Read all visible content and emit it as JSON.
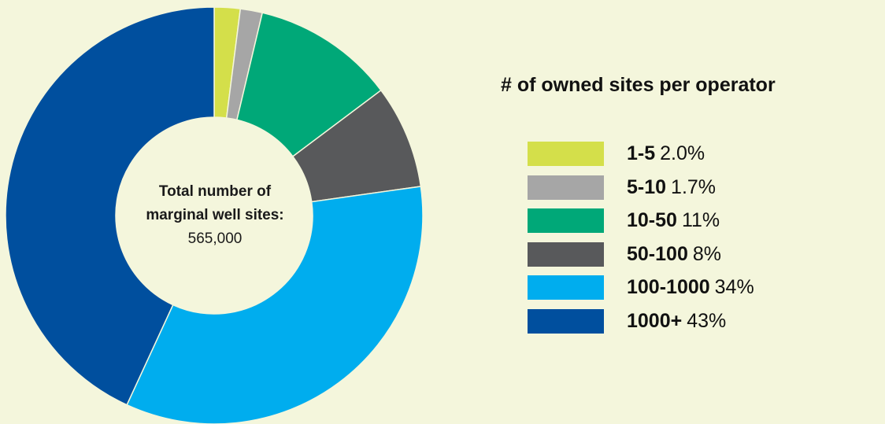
{
  "chart_data": {
    "type": "pie",
    "title": "",
    "legend_title": "# of owned sites per operator",
    "center_label": {
      "line1": "Total number of",
      "line2": "marginal well sites:",
      "value": "565,000"
    },
    "categories": [
      "1-5",
      "5-10",
      "10-50",
      "50-100",
      "100-1000",
      "1000+"
    ],
    "values": [
      2.0,
      1.7,
      11,
      8,
      34,
      43
    ],
    "value_labels": [
      "2.0%",
      "1.7%",
      "11%",
      "8%",
      "34%",
      "43%"
    ],
    "colors": [
      "#d4df4a",
      "#a6a6a6",
      "#00a878",
      "#58595b",
      "#00adee",
      "#004f9e"
    ],
    "donut": true,
    "legend_position": "right"
  }
}
